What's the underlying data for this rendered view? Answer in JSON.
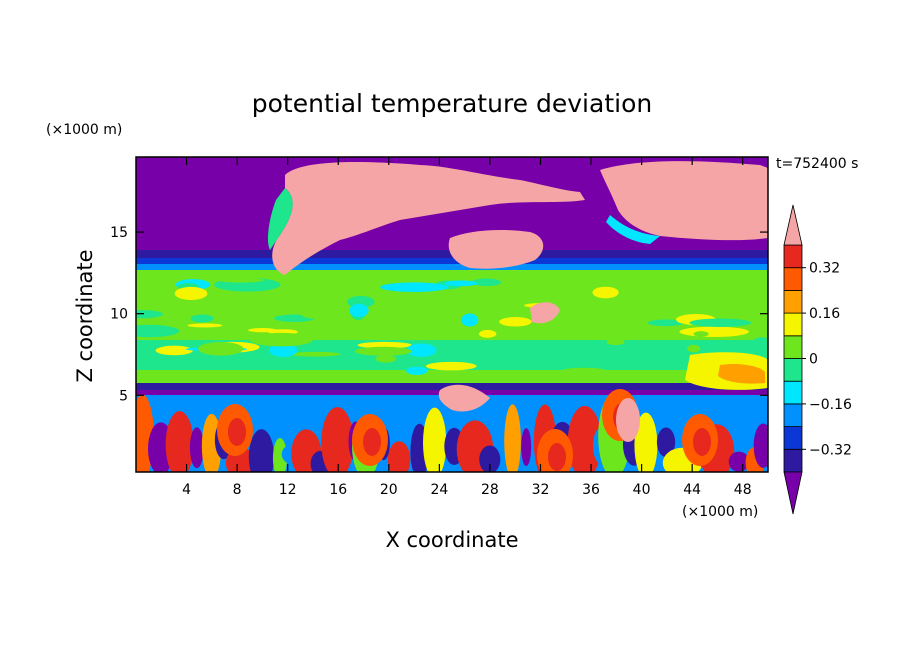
{
  "chart_data": {
    "type": "heatmap",
    "title": "potential temperature deviation",
    "xlabel": "X coordinate",
    "ylabel": "Z coordinate",
    "x_unit": "(×1000 m)",
    "y_unit": "(×1000 m)",
    "time_label": "t=752400 s",
    "xlim": [
      0,
      50
    ],
    "ylim": [
      0.3,
      19.6
    ],
    "x_ticks": [
      4,
      8,
      12,
      16,
      20,
      24,
      28,
      32,
      36,
      40,
      44,
      48
    ],
    "y_ticks": [
      5,
      10,
      15
    ],
    "colorbar": {
      "levels": [
        -0.4,
        -0.32,
        -0.24,
        -0.16,
        -0.08,
        0,
        0.08,
        0.16,
        0.24,
        0.32,
        0.4
      ],
      "tick_values": [
        0.32,
        0.16,
        0,
        -0.16,
        -0.32
      ],
      "tick_labels": [
        "0.32",
        "0.16",
        "0",
        "−0.16",
        "−0.32"
      ],
      "colors": [
        "#7800a8",
        "#2e1aa0",
        "#0a37d6",
        "#0091ff",
        "#00e6ff",
        "#1ee68c",
        "#6ee61e",
        "#f5f500",
        "#ffa000",
        "#ff5a00",
        "#e6281e",
        "#f5a5a5"
      ]
    }
  }
}
